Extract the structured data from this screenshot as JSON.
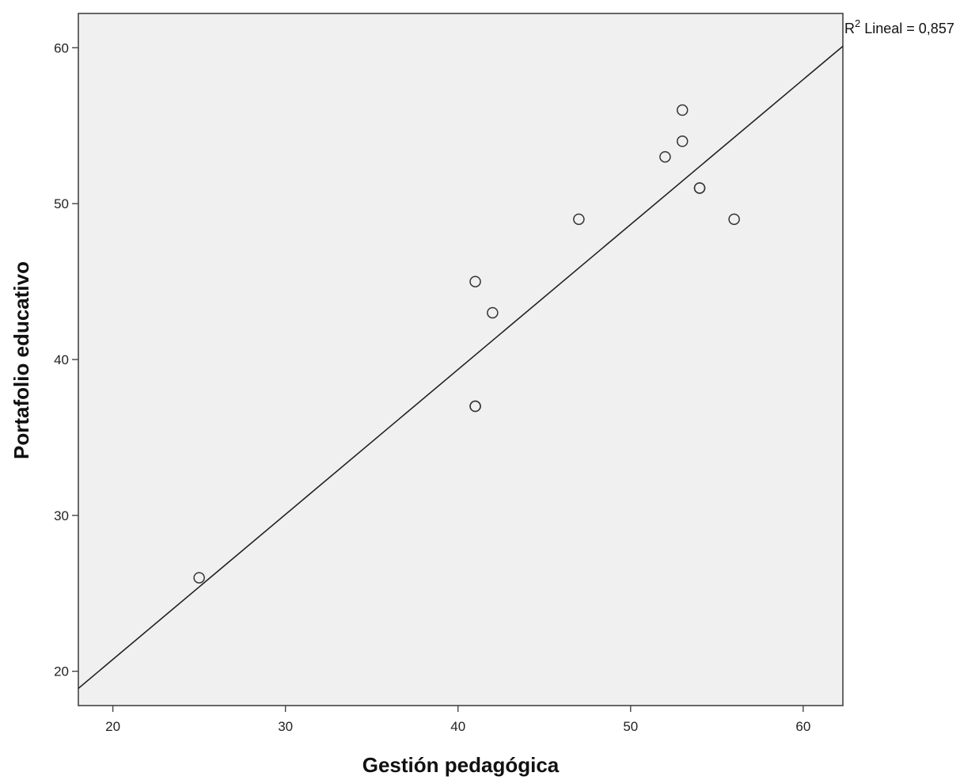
{
  "chart_data": {
    "type": "scatter",
    "xlabel": "Gestión pedagógica",
    "ylabel": "Portafolio educativo",
    "xlim": [
      18,
      62.3
    ],
    "ylim": [
      17.8,
      62.2
    ],
    "xticks": [
      20,
      30,
      40,
      50,
      60
    ],
    "yticks": [
      20,
      30,
      40,
      50,
      60
    ],
    "points": [
      {
        "x": 25,
        "y": 26
      },
      {
        "x": 41,
        "y": 45
      },
      {
        "x": 41,
        "y": 37
      },
      {
        "x": 41,
        "y": 37
      },
      {
        "x": 42,
        "y": 43
      },
      {
        "x": 47,
        "y": 49
      },
      {
        "x": 52,
        "y": 53
      },
      {
        "x": 53,
        "y": 56
      },
      {
        "x": 53,
        "y": 54
      },
      {
        "x": 54,
        "y": 51
      },
      {
        "x": 54,
        "y": 51
      },
      {
        "x": 56,
        "y": 49
      }
    ],
    "fit_line": {
      "type": "linear",
      "x": [
        18,
        62.3
      ],
      "y": [
        18.9,
        60.1
      ]
    },
    "annotation": {
      "prefix": "R",
      "superscript": "2",
      "text": " Lineal = 0,857"
    },
    "grid": false,
    "plot_background": "#f0f0f0",
    "marker_color": "#333333",
    "line_color": "#222222"
  }
}
